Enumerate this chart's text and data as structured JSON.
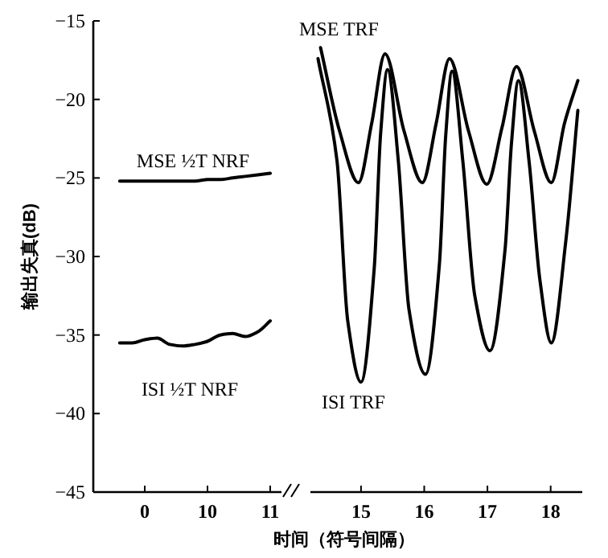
{
  "chart_data": [
    {
      "type": "line",
      "ylabel": "输出失真(dB)",
      "ylim": [
        -45,
        -15
      ],
      "yticks": [
        -45,
        -40,
        -35,
        -30,
        -25,
        -20,
        -15
      ],
      "categories": [
        null,
        null,
        "0",
        null,
        null,
        null,
        null,
        "10",
        null,
        null,
        null,
        null,
        "11"
      ],
      "grid": false,
      "legend": false,
      "series": [
        {
          "name": "MSE ½T NRF",
          "color": "#000000",
          "values": [
            -25.2,
            -25.2,
            -25.2,
            -25.2,
            -25.2,
            -25.2,
            -25.2,
            -25.1,
            -25.1,
            -25.0,
            -24.9,
            -24.8,
            -24.7
          ]
        },
        {
          "name": "ISI ½T NRF",
          "color": "#000000",
          "values": [
            -35.5,
            -35.5,
            -35.3,
            -35.2,
            -35.6,
            -35.7,
            -35.6,
            -35.4,
            -35.0,
            -34.9,
            -35.1,
            -34.8,
            -34.1
          ]
        }
      ]
    },
    {
      "type": "line",
      "xlabel": "时间（符号间隔）",
      "ylim": [
        -45,
        -15
      ],
      "xlim": [
        14.2,
        18.5
      ],
      "xticks": [
        15,
        16,
        17,
        18
      ],
      "tick_labels": "x",
      "grid": false,
      "legend": false,
      "series": [
        {
          "name": "MSE TRF",
          "color": "#000000",
          "x": [
            14.36,
            14.66,
            14.96,
            15.17,
            15.38,
            15.68,
            15.97,
            16.19,
            16.4,
            16.7,
            16.99,
            17.23,
            17.46,
            17.74,
            18.01,
            18.22,
            18.43
          ],
          "values": [
            -16.7,
            -22,
            -25.3,
            -21.5,
            -17.1,
            -22,
            -25.3,
            -21.5,
            -17.4,
            -22,
            -25.4,
            -21.8,
            -17.9,
            -22,
            -25.3,
            -21.5,
            -18.8
          ]
        },
        {
          "name": "ISI TRF",
          "color": "#000000",
          "x": [
            14.32,
            14.62,
            14.79,
            15.0,
            15.21,
            15.31,
            15.42,
            15.59,
            15.76,
            16.02,
            16.24,
            16.34,
            16.44,
            16.61,
            16.8,
            17.04,
            17.28,
            17.38,
            17.49,
            17.66,
            17.83,
            18.01,
            18.24,
            18.43
          ],
          "values": [
            -17.4,
            -23.9,
            -34.1,
            -38.0,
            -30.7,
            -22.2,
            -18.1,
            -23.9,
            -33.4,
            -37.5,
            -30.5,
            -22.3,
            -18.2,
            -23.9,
            -32.5,
            -36.0,
            -29.5,
            -22.8,
            -18.8,
            -24,
            -31.5,
            -35.5,
            -29,
            -20.7
          ]
        }
      ]
    }
  ]
}
